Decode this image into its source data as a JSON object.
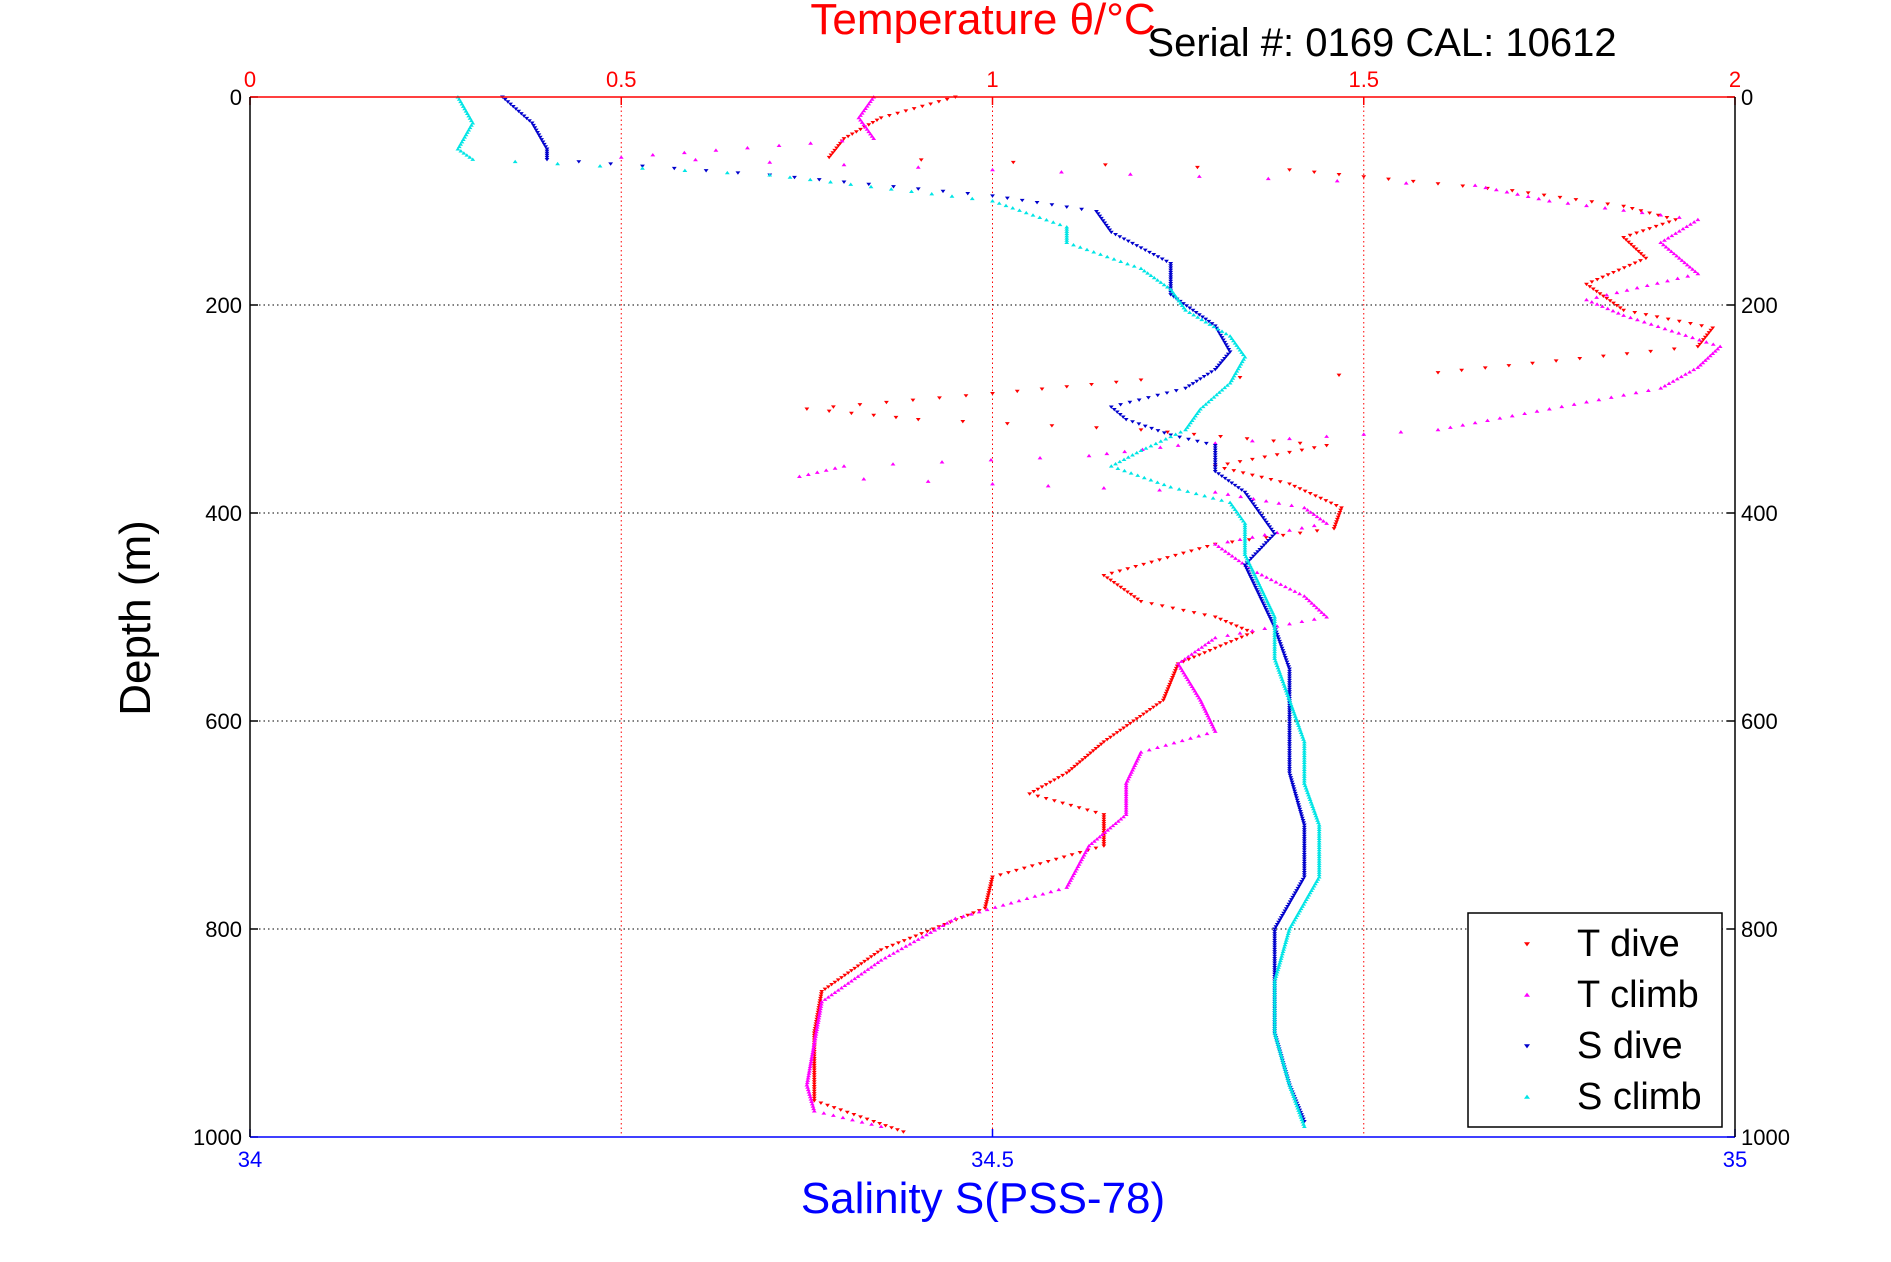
{
  "header": {
    "serial_text": "Serial #: 0169 CAL: 10612"
  },
  "colors": {
    "temperature_axis": "#ff0000",
    "salinity_axis": "#0000ff",
    "t_dive": "#ff0000",
    "t_climb": "#ff00ff",
    "s_dive": "#0000cc",
    "s_climb": "#00e5e5",
    "grid": "#000000"
  },
  "chart_data": {
    "type": "scatter",
    "title": "Temperature θ/°C",
    "ylabel": "Depth (m)",
    "xlabel": "Salinity S(PSS-78)",
    "temperature_axis": {
      "label": "Temperature θ/°C",
      "range": [
        0,
        2
      ],
      "ticks": [
        "0",
        "0.5",
        "1",
        "1.5",
        "2"
      ],
      "position": "top"
    },
    "salinity_axis": {
      "label": "Salinity S(PSS-78)",
      "range": [
        34,
        35
      ],
      "ticks": [
        "34",
        "34.5",
        "35"
      ],
      "position": "bottom"
    },
    "depth_axis": {
      "label": "Depth (m)",
      "range": [
        0,
        1000
      ],
      "reversed": true,
      "ticks": [
        "0",
        "200",
        "400",
        "600",
        "800",
        "1000"
      ]
    },
    "grid": true,
    "legend": {
      "position": "bottom-right",
      "entries": [
        "T dive",
        "T climb",
        "S dive",
        "S climb"
      ]
    },
    "series": [
      {
        "name": "T dive",
        "axis": "temperature",
        "marker": "triangle-down",
        "points": [
          [
            0.95,
            0
          ],
          [
            0.85,
            20
          ],
          [
            0.8,
            40
          ],
          [
            0.78,
            58
          ],
          [
            1.4,
            70
          ],
          [
            1.7,
            90
          ],
          [
            1.85,
            105
          ],
          [
            1.92,
            118
          ],
          [
            1.85,
            135
          ],
          [
            1.88,
            155
          ],
          [
            1.8,
            180
          ],
          [
            1.85,
            205
          ],
          [
            1.97,
            222
          ],
          [
            1.95,
            240
          ],
          [
            1.6,
            265
          ],
          [
            1.2,
            272
          ],
          [
            1.0,
            285
          ],
          [
            0.75,
            300
          ],
          [
            0.9,
            310
          ],
          [
            1.2,
            320
          ],
          [
            1.45,
            335
          ],
          [
            1.3,
            355
          ],
          [
            1.4,
            372
          ],
          [
            1.47,
            395
          ],
          [
            1.46,
            415
          ],
          [
            1.3,
            430
          ],
          [
            1.15,
            460
          ],
          [
            1.2,
            485
          ],
          [
            1.3,
            500
          ],
          [
            1.35,
            515
          ],
          [
            1.25,
            545
          ],
          [
            1.23,
            580
          ],
          [
            1.15,
            620
          ],
          [
            1.1,
            650
          ],
          [
            1.05,
            670
          ],
          [
            1.15,
            690
          ],
          [
            1.15,
            720
          ],
          [
            1.0,
            750
          ],
          [
            0.99,
            780
          ],
          [
            0.85,
            820
          ],
          [
            0.77,
            860
          ],
          [
            0.76,
            900
          ],
          [
            0.76,
            940
          ],
          [
            0.76,
            965
          ],
          [
            0.84,
            985
          ],
          [
            0.88,
            995
          ]
        ]
      },
      {
        "name": "T climb",
        "axis": "temperature",
        "marker": "triangle-up",
        "points": [
          [
            0.84,
            0
          ],
          [
            0.82,
            20
          ],
          [
            0.84,
            40
          ],
          [
            0.5,
            58
          ],
          [
            1.0,
            70
          ],
          [
            1.65,
            85
          ],
          [
            1.75,
            100
          ],
          [
            1.95,
            118
          ],
          [
            1.9,
            140
          ],
          [
            1.95,
            170
          ],
          [
            1.8,
            195
          ],
          [
            1.85,
            210
          ],
          [
            1.98,
            240
          ],
          [
            1.95,
            260
          ],
          [
            1.9,
            280
          ],
          [
            1.75,
            300
          ],
          [
            1.6,
            320
          ],
          [
            1.25,
            335
          ],
          [
            1.13,
            345
          ],
          [
            0.8,
            355
          ],
          [
            0.74,
            365
          ],
          [
            1.0,
            372
          ],
          [
            1.3,
            380
          ],
          [
            1.42,
            395
          ],
          [
            1.45,
            410
          ],
          [
            1.3,
            430
          ],
          [
            1.35,
            455
          ],
          [
            1.42,
            480
          ],
          [
            1.45,
            500
          ],
          [
            1.3,
            520
          ],
          [
            1.25,
            545
          ],
          [
            1.28,
            580
          ],
          [
            1.3,
            610
          ],
          [
            1.2,
            630
          ],
          [
            1.18,
            660
          ],
          [
            1.18,
            690
          ],
          [
            1.13,
            720
          ],
          [
            1.1,
            760
          ],
          [
            0.95,
            790
          ],
          [
            0.85,
            830
          ],
          [
            0.77,
            870
          ],
          [
            0.76,
            910
          ],
          [
            0.75,
            950
          ],
          [
            0.76,
            975
          ],
          [
            0.85,
            990
          ]
        ]
      },
      {
        "name": "S dive",
        "axis": "salinity",
        "marker": "triangle-down",
        "points": [
          [
            34.17,
            0
          ],
          [
            34.19,
            25
          ],
          [
            34.2,
            50
          ],
          [
            34.2,
            60
          ],
          [
            34.35,
            75
          ],
          [
            34.5,
            95
          ],
          [
            34.57,
            110
          ],
          [
            34.58,
            130
          ],
          [
            34.62,
            160
          ],
          [
            34.62,
            190
          ],
          [
            34.65,
            220
          ],
          [
            34.66,
            245
          ],
          [
            34.65,
            262
          ],
          [
            34.63,
            280
          ],
          [
            34.58,
            298
          ],
          [
            34.59,
            310
          ],
          [
            34.62,
            325
          ],
          [
            34.65,
            335
          ],
          [
            34.65,
            360
          ],
          [
            34.67,
            380
          ],
          [
            34.68,
            400
          ],
          [
            34.69,
            420
          ],
          [
            34.67,
            450
          ],
          [
            34.68,
            480
          ],
          [
            34.69,
            510
          ],
          [
            34.7,
            550
          ],
          [
            34.7,
            600
          ],
          [
            34.7,
            650
          ],
          [
            34.71,
            700
          ],
          [
            34.71,
            750
          ],
          [
            34.69,
            800
          ],
          [
            34.69,
            850
          ],
          [
            34.69,
            900
          ],
          [
            34.7,
            950
          ],
          [
            34.71,
            985
          ]
        ]
      },
      {
        "name": "S climb",
        "axis": "salinity",
        "marker": "triangle-up",
        "points": [
          [
            34.14,
            0
          ],
          [
            34.15,
            25
          ],
          [
            34.14,
            50
          ],
          [
            34.15,
            60
          ],
          [
            34.35,
            75
          ],
          [
            34.5,
            100
          ],
          [
            34.55,
            125
          ],
          [
            34.55,
            140
          ],
          [
            34.6,
            165
          ],
          [
            34.62,
            185
          ],
          [
            34.63,
            205
          ],
          [
            34.66,
            230
          ],
          [
            34.67,
            250
          ],
          [
            34.66,
            275
          ],
          [
            34.64,
            300
          ],
          [
            34.63,
            320
          ],
          [
            34.6,
            340
          ],
          [
            34.58,
            355
          ],
          [
            34.62,
            375
          ],
          [
            34.66,
            390
          ],
          [
            34.67,
            410
          ],
          [
            34.67,
            440
          ],
          [
            34.68,
            470
          ],
          [
            34.69,
            500
          ],
          [
            34.69,
            540
          ],
          [
            34.7,
            580
          ],
          [
            34.71,
            620
          ],
          [
            34.71,
            660
          ],
          [
            34.72,
            700
          ],
          [
            34.72,
            750
          ],
          [
            34.7,
            800
          ],
          [
            34.69,
            850
          ],
          [
            34.69,
            900
          ],
          [
            34.7,
            950
          ],
          [
            34.71,
            990
          ]
        ]
      }
    ]
  }
}
